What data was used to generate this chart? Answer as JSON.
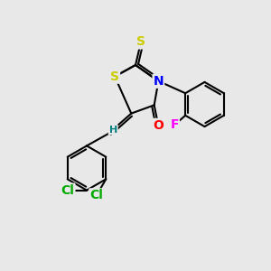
{
  "background_color": "#e8e8e8",
  "atom_colors": {
    "S": "#cccc00",
    "N": "#0000ff",
    "O": "#ff0000",
    "F": "#ff00ff",
    "Cl": "#00aa00",
    "C": "#000000",
    "H": "#008080"
  },
  "bond_color": "#000000",
  "bond_width": 1.5,
  "font_size_atom": 10,
  "font_size_small": 8,
  "xlim": [
    0,
    10
  ],
  "ylim": [
    0,
    10
  ]
}
